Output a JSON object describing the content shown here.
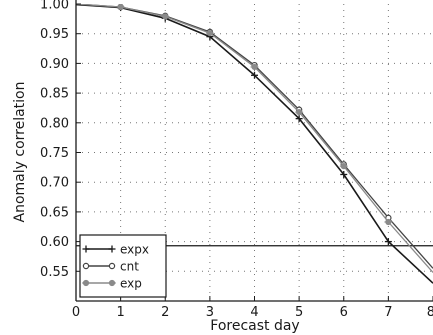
{
  "chart_data": {
    "type": "line",
    "xlabel": "Forecast day",
    "ylabel": "Anomaly correlation",
    "xlim": [
      0,
      8
    ],
    "ylim": [
      0.5,
      1.0
    ],
    "x_ticks": [
      "0",
      "1",
      "2",
      "3",
      "4",
      "5",
      "6",
      "7",
      "8"
    ],
    "y_ticks": [
      "0.55",
      "0.60",
      "0.65",
      "0.70",
      "0.75",
      "0.80",
      "0.85",
      "0.90",
      "0.95",
      "1.00"
    ],
    "grid": "dotted",
    "reference_line": 0.593,
    "legend_position": "bottom-left",
    "series": [
      {
        "name": "expx",
        "x": [
          0,
          1,
          2,
          3,
          4,
          5,
          6,
          7,
          8
        ],
        "values": [
          0.999,
          0.994,
          0.976,
          0.945,
          0.88,
          0.807,
          0.713,
          0.6,
          0.53
        ],
        "color": "#1a1a1a",
        "marker": "plus"
      },
      {
        "name": "cnt",
        "x": [
          0,
          1,
          2,
          3,
          4,
          5,
          6,
          7,
          8
        ],
        "values": [
          1.0,
          0.995,
          0.98,
          0.953,
          0.897,
          0.822,
          0.73,
          0.64,
          0.555
        ],
        "color": "#444444",
        "marker": "circle"
      },
      {
        "name": "exp",
        "x": [
          0,
          1,
          2,
          3,
          4,
          5,
          6,
          7,
          8
        ],
        "values": [
          1.0,
          0.995,
          0.979,
          0.951,
          0.894,
          0.818,
          0.727,
          0.633,
          0.548
        ],
        "color": "#8a8a8a",
        "marker": "star"
      }
    ]
  }
}
